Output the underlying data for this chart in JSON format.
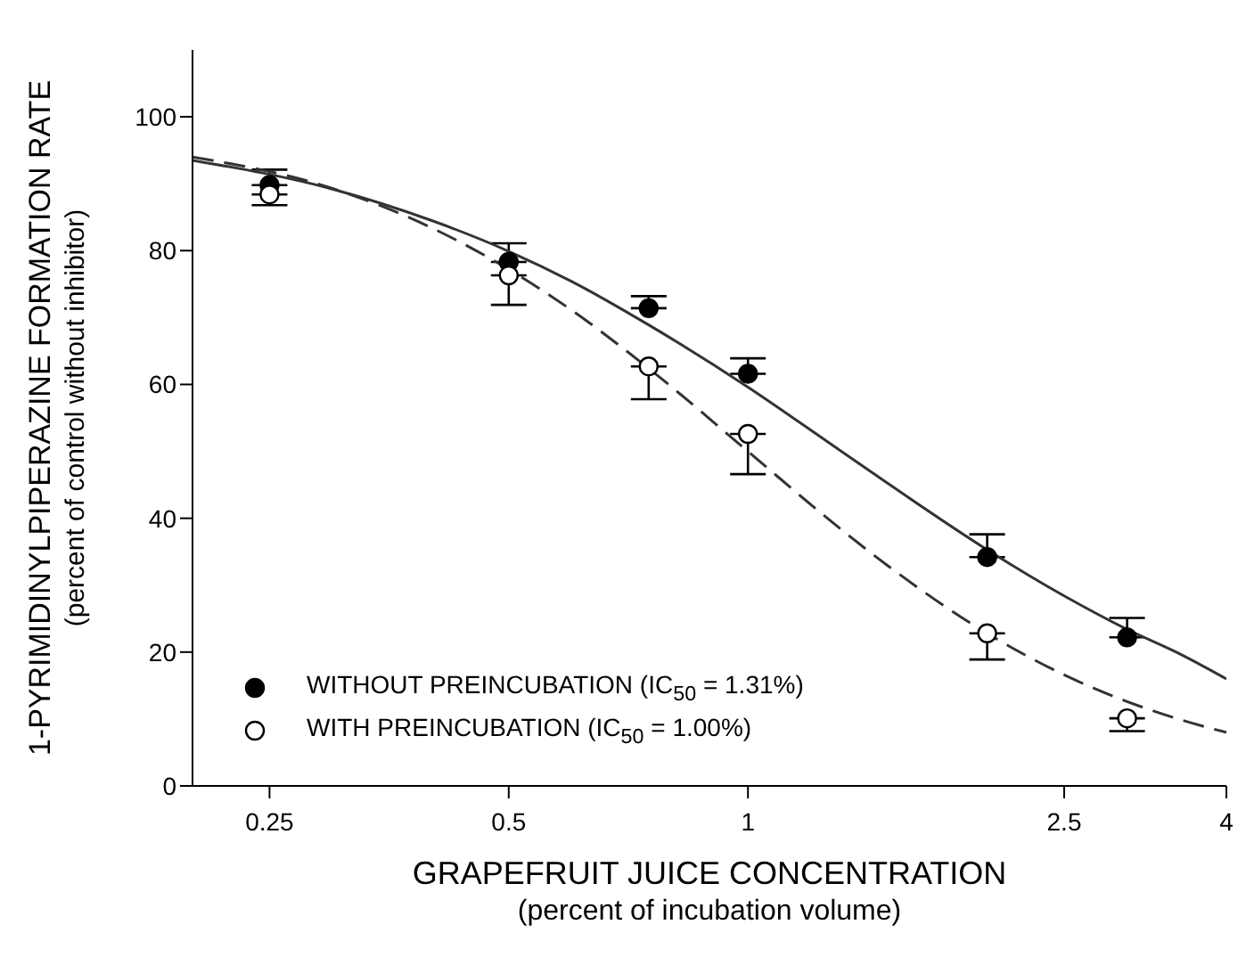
{
  "chart_data": {
    "type": "scatter",
    "xlabel": "GRAPEFRUIT JUICE CONCENTRATION\n(percent of incubation volume)",
    "ylabel": "1-PYRIMIDINYLPIPERAZINE FORMATION RATE\n(percent of control without inhibitor)",
    "x": [
      0.25,
      0.5,
      0.75,
      1,
      2,
      3
    ],
    "series": [
      {
        "name": "WITHOUT PREINCUBATION (IC$_{50}$ = 1.31%)",
        "color": "#000000",
        "marker": "circle",
        "values": [
          89.8,
          78.3,
          71.4,
          61.6,
          34.2,
          22.2
        ],
        "errors": [
          [
            89.8,
            92.1
          ],
          [
            78.3,
            81.1
          ],
          [
            71.4,
            73.2
          ],
          [
            61.6,
            63.9
          ],
          [
            34.2,
            37.6
          ],
          [
            22.2,
            25.1
          ]
        ]
      },
      {
        "name": "WITH PREINCUBATION (IC$_{50}$ = 1.00%)",
        "color": "#ffffff",
        "marker": "circle",
        "values": [
          88.4,
          76.3,
          62.7,
          52.6,
          22.8,
          10.1
        ],
        "errors": [
          [
            86.8,
            88.4
          ],
          [
            71.9,
            76.3
          ],
          [
            57.8,
            62.7
          ],
          [
            46.6,
            52.6
          ],
          [
            18.9,
            22.8
          ],
          [
            8.2,
            10.1
          ]
        ]
      },
      {
        "type": "line",
        "color": "#333333",
        "line_style": "solid",
        "marker": "none",
        "x": [
          0.2,
          0.3,
          0.4,
          0.5,
          0.6,
          0.75,
          1,
          1.25,
          1.5,
          2,
          2.5,
          3,
          3.5,
          4
        ],
        "values": [
          93.5,
          89.2,
          84.5,
          79.9,
          75.4,
          68.9,
          59.6,
          51.7,
          45.2,
          35.3,
          28.4,
          23.4,
          19.7,
          16
        ]
      },
      {
        "type": "line",
        "color": "#333333",
        "line_style": "dashed",
        "marker": "none",
        "x": [
          0.2,
          0.3,
          0.4,
          0.5,
          0.6,
          0.75,
          1,
          1.25,
          1.5,
          2,
          2.5,
          3,
          3.5,
          4
        ],
        "values": [
          94,
          89.3,
          83.4,
          77.2,
          71.1,
          62.4,
          50,
          40.3,
          32.9,
          22.8,
          16.6,
          12.6,
          9.9,
          8
        ]
      }
    ],
    "log": "x",
    "xlim": [
      0.2,
      4
    ],
    "xticks": [
      0.25,
      0.5,
      1,
      2.5,
      4
    ],
    "ylim": [
      0,
      110
    ],
    "yticks": [
      0,
      20,
      40,
      60,
      80,
      100
    ],
    "grid": false,
    "legend": "bottom left"
  }
}
